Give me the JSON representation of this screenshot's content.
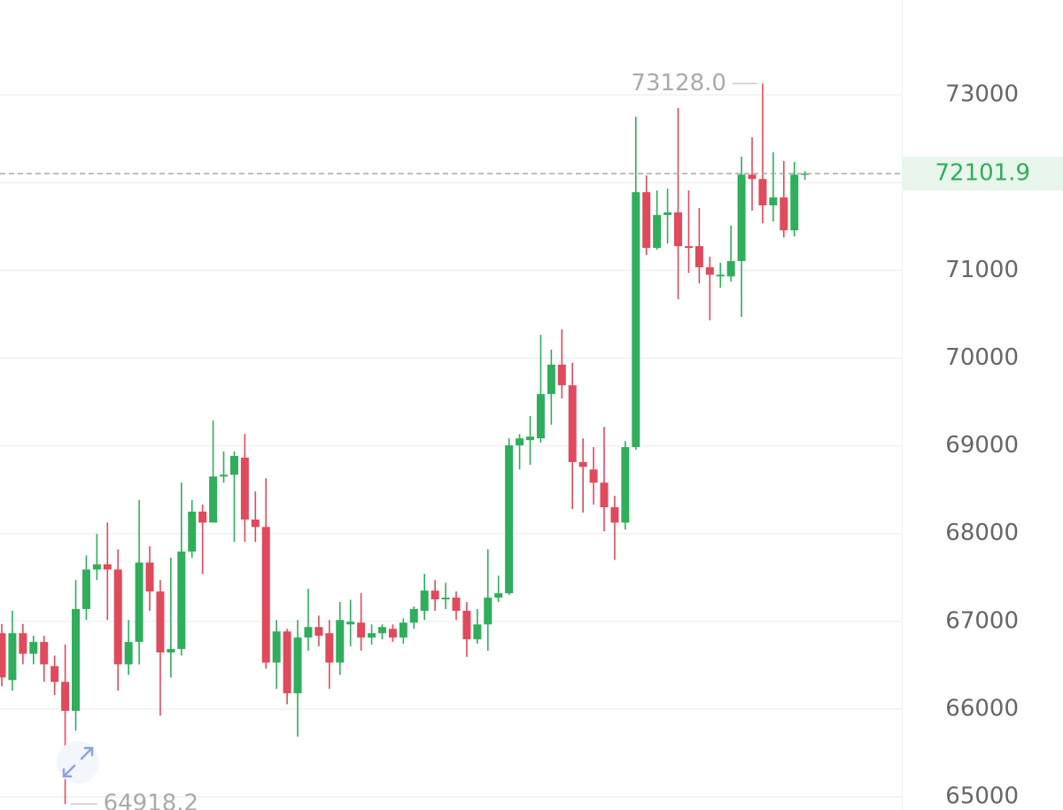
{
  "chart_data": {
    "type": "candlestick",
    "up_color": "#2fae5c",
    "down_color": "#e04a5c",
    "ylim": [
      64850,
      74080
    ],
    "yticks": [
      65000,
      66000,
      67000,
      68000,
      69000,
      70000,
      71000,
      72000,
      73000
    ],
    "grid": true,
    "last_price": 72101.9,
    "high_annotation": {
      "value": 73128,
      "label": "73128.0"
    },
    "low_annotation": {
      "value": 64918.2,
      "label": "64918.2"
    },
    "open": [
      66865,
      66330,
      66865,
      66630,
      66765,
      66490,
      66310,
      65980,
      67140,
      67590,
      67650,
      67590,
      66510,
      66765,
      67670,
      67340,
      66645,
      66685,
      67795,
      68250,
      68125,
      68650,
      68670,
      68865,
      68160,
      68075,
      66530,
      66885,
      66180,
      66815,
      66935,
      66865,
      66530,
      66965,
      66985,
      66815,
      66865,
      66915,
      66815,
      66985,
      67120,
      67350,
      67250,
      67270,
      67120,
      66795,
      66965,
      67270,
      67320,
      69005,
      69065,
      69085,
      69590,
      69925,
      69690,
      68815,
      68730,
      68580,
      68300,
      68125,
      68985,
      71890,
      71255,
      71630,
      71660,
      71275,
      71275,
      71035,
      70930,
      70930,
      71105,
      72090,
      72040,
      71740,
      71830,
      71455,
      72090
    ],
    "high": [
      66970,
      67120,
      66970,
      66835,
      66835,
      66610,
      66735,
      67470,
      67750,
      67995,
      68125,
      67820,
      67015,
      68380,
      67855,
      67470,
      67725,
      68580,
      68380,
      68330,
      69290,
      68935,
      68935,
      69135,
      68480,
      68630,
      67015,
      66915,
      67015,
      67370,
      67065,
      67015,
      67220,
      67245,
      67320,
      66965,
      66965,
      66965,
      67035,
      67170,
      67540,
      67470,
      67440,
      67340,
      67220,
      67140,
      67820,
      67520,
      69085,
      69135,
      69340,
      70265,
      70095,
      70325,
      69945,
      69085,
      68985,
      69215,
      68430,
      69055,
      72750,
      72080,
      71910,
      71930,
      72850,
      71910,
      71710,
      71155,
      71085,
      71510,
      72295,
      72515,
      73128,
      72345,
      72245,
      72235,
      72130
    ],
    "low": [
      66260,
      66210,
      66510,
      66510,
      66310,
      66160,
      64918.2,
      65755,
      67015,
      67470,
      67015,
      66210,
      66390,
      66510,
      67120,
      65925,
      66360,
      66610,
      67725,
      67540,
      68185,
      68580,
      67905,
      67905,
      67905,
      66460,
      66230,
      66055,
      65685,
      66665,
      66715,
      66230,
      66390,
      66715,
      66665,
      66735,
      66795,
      66765,
      66745,
      66915,
      67015,
      67120,
      67140,
      67015,
      66595,
      66745,
      66665,
      67220,
      67300,
      68730,
      68785,
      69035,
      69240,
      69540,
      68280,
      68240,
      68330,
      68025,
      67700,
      68045,
      68955,
      71175,
      71235,
      71305,
      70670,
      70970,
      70850,
      70430,
      70800,
      70870,
      70470,
      71680,
      71535,
      71555,
      71375,
      71385,
      72030
    ],
    "close": [
      66360,
      66865,
      66630,
      66765,
      66510,
      66310,
      65980,
      67140,
      67590,
      67650,
      67590,
      66510,
      66765,
      67670,
      67340,
      66645,
      66685,
      67795,
      68250,
      68125,
      68650,
      68670,
      68885,
      68160,
      68075,
      66530,
      66885,
      66180,
      66815,
      66935,
      66835,
      66530,
      67015,
      66995,
      66815,
      66865,
      66935,
      66815,
      66985,
      67140,
      67350,
      67250,
      67270,
      67120,
      66795,
      66965,
      67270,
      67320,
      69005,
      69085,
      69105,
      69590,
      69925,
      69690,
      68815,
      68760,
      68580,
      68300,
      68125,
      68985,
      71890,
      71255,
      71630,
      71660,
      71275,
      71255,
      71035,
      70950,
      70950,
      71105,
      72090,
      72040,
      71740,
      71830,
      71455,
      72090,
      72101.9
    ]
  }
}
